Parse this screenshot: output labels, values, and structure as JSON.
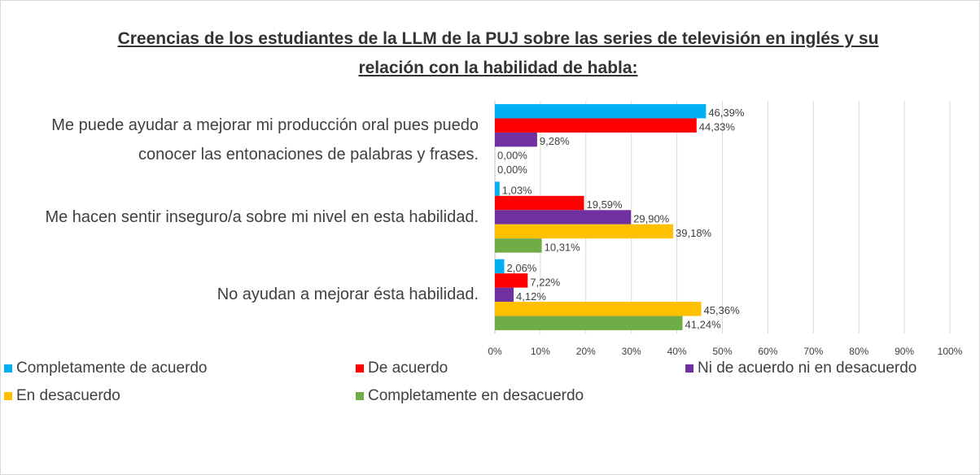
{
  "chart_data": {
    "type": "bar",
    "orientation": "horizontal",
    "title": "Creencias de los estudiantes de la LLM de la PUJ sobre las series de televisión en inglés y su relación con la habilidad de habla:",
    "categories": [
      "Me puede ayudar a mejorar mi producción oral pues puedo conocer las entonaciones de palabras y frases.",
      "Me hacen sentir inseguro/a sobre mi nivel en esta habilidad.",
      "No ayudan a mejorar ésta habilidad."
    ],
    "series": [
      {
        "name": "Completamente de acuerdo",
        "color": "#00b0f0",
        "values": [
          46.39,
          1.03,
          2.06
        ],
        "value_labels": [
          "46,39%",
          "1,03%",
          "2,06%"
        ]
      },
      {
        "name": "De acuerdo",
        "color": "#ff0000",
        "values": [
          44.33,
          19.59,
          7.22
        ],
        "value_labels": [
          "44,33%",
          "19,59%",
          "7,22%"
        ]
      },
      {
        "name": "Ni de acuerdo ni en desacuerdo",
        "color": "#7030a0",
        "values": [
          9.28,
          29.9,
          4.12
        ],
        "value_labels": [
          "9,28%",
          "29,90%",
          "4,12%"
        ]
      },
      {
        "name": "En desacuerdo",
        "color": "#ffc000",
        "values": [
          0,
          39.18,
          45.36
        ],
        "value_labels": [
          "0,00%",
          "39,18%",
          "45,36%"
        ]
      },
      {
        "name": "Completamente en desacuerdo",
        "color": "#70ad47",
        "values": [
          0,
          10.31,
          41.24
        ],
        "value_labels": [
          "0,00%",
          "10,31%",
          "41,24%"
        ]
      }
    ],
    "xlim": [
      0,
      100
    ],
    "xticks": [
      {
        "value": 0,
        "label": "0%"
      },
      {
        "value": 10,
        "label": "10%"
      },
      {
        "value": 20,
        "label": "20%"
      },
      {
        "value": 30,
        "label": "30%"
      },
      {
        "value": 40,
        "label": "40%"
      },
      {
        "value": 50,
        "label": "50%"
      },
      {
        "value": 60,
        "label": "60%"
      },
      {
        "value": 70,
        "label": "70%"
      },
      {
        "value": 80,
        "label": "80%"
      },
      {
        "value": 90,
        "label": "90%"
      },
      {
        "value": 100,
        "label": "100%"
      }
    ],
    "grid": true,
    "legend": "bottom"
  }
}
